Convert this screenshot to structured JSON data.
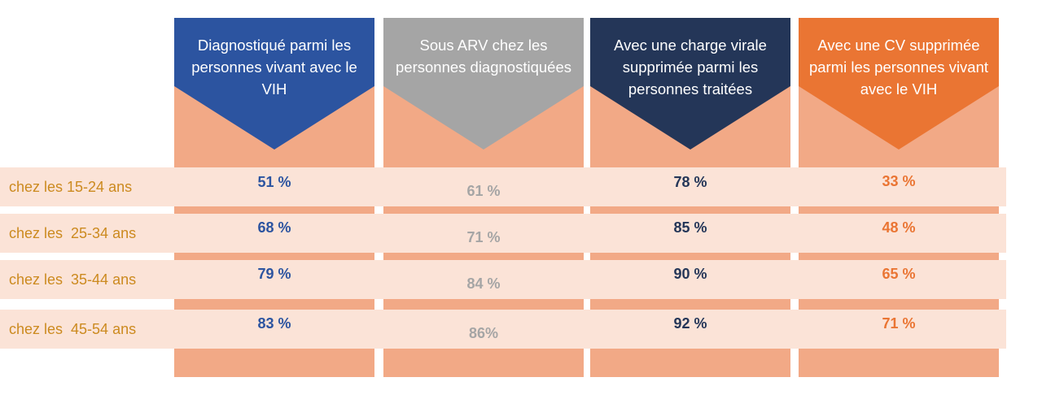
{
  "chart_data": {
    "type": "table",
    "columns": [
      {
        "label": "Diagnostiqué parmi les personnes vivant avec le VIH",
        "header_color": "#2c54a0",
        "value_color": "#2c54a0"
      },
      {
        "label": "Sous ARV chez les personnes diagnostiquées",
        "header_color": "#a5a5a5",
        "value_color": "#a5a5a5"
      },
      {
        "label": "Avec une charge virale supprimée parmi les personnes traitées",
        "header_color": "#243658",
        "value_color": "#243658"
      },
      {
        "label": "Avec une CV supprimée parmi les personnes vivant avec le VIH",
        "header_color": "#ea7533",
        "value_color": "#ea7533"
      }
    ],
    "rows": [
      {
        "label": "chez les 15-24 ans",
        "values": [
          "51 %",
          "61 %",
          "78 %",
          "33 %"
        ],
        "numeric": [
          51,
          61,
          78,
          33
        ]
      },
      {
        "label": "chez les  25-34 ans",
        "values": [
          "68 %",
          "71 %",
          "85 %",
          "48 %"
        ],
        "numeric": [
          68,
          71,
          85,
          48
        ]
      },
      {
        "label": "chez les  35-44 ans",
        "values": [
          "79 %",
          "84 %",
          "90 %",
          "65 %"
        ],
        "numeric": [
          79,
          84,
          90,
          65
        ]
      },
      {
        "label": "chez les  45-54 ans",
        "values": [
          "83 %",
          "86%",
          "92 %",
          "71 %"
        ],
        "numeric": [
          83,
          86,
          92,
          71
        ]
      }
    ],
    "colors": {
      "column_body": "#f2a986",
      "row_band": "#fbe3d7",
      "row_label": "#cc8a1f"
    }
  }
}
